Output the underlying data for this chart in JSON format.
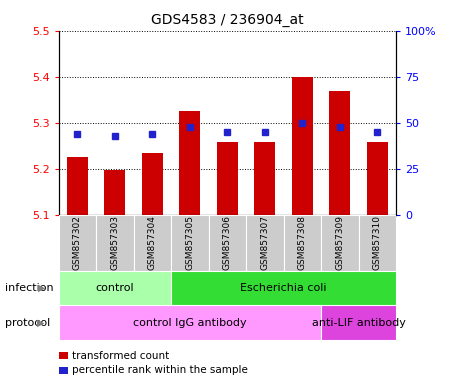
{
  "title": "GDS4583 / 236904_at",
  "samples": [
    "GSM857302",
    "GSM857303",
    "GSM857304",
    "GSM857305",
    "GSM857306",
    "GSM857307",
    "GSM857308",
    "GSM857309",
    "GSM857310"
  ],
  "transformed_counts": [
    5.225,
    5.198,
    5.235,
    5.325,
    5.258,
    5.258,
    5.4,
    5.37,
    5.258
  ],
  "percentile_ranks": [
    44,
    43,
    44,
    48,
    45,
    45,
    50,
    48,
    45
  ],
  "bar_color": "#cc0000",
  "dot_color": "#2222cc",
  "ylim_left": [
    5.1,
    5.5
  ],
  "ylim_right": [
    0,
    100
  ],
  "yticks_left": [
    5.1,
    5.2,
    5.3,
    5.4,
    5.5
  ],
  "yticks_right": [
    0,
    25,
    50,
    75,
    100
  ],
  "ytick_labels_right": [
    "0",
    "25",
    "50",
    "75",
    "100%"
  ],
  "infection_labels": [
    {
      "text": "control",
      "start": 0,
      "end": 3,
      "color": "#aaffaa"
    },
    {
      "text": "Escherichia coli",
      "start": 3,
      "end": 9,
      "color": "#33dd33"
    }
  ],
  "protocol_labels": [
    {
      "text": "control IgG antibody",
      "start": 0,
      "end": 7,
      "color": "#ff99ff"
    },
    {
      "text": "anti-LIF antibody",
      "start": 7,
      "end": 9,
      "color": "#dd44dd"
    }
  ],
  "infection_row_label": "infection",
  "protocol_row_label": "protocol",
  "legend_items": [
    {
      "color": "#cc0000",
      "label": "transformed count"
    },
    {
      "color": "#2222cc",
      "label": "percentile rank within the sample"
    }
  ],
  "bar_width": 0.55,
  "sample_area_color": "#cccccc",
  "background_color": "#ffffff"
}
